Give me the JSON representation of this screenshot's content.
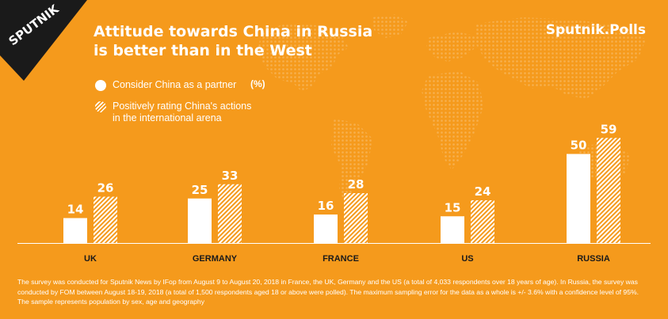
{
  "logo": {
    "text": "SPUTNIK"
  },
  "title": {
    "line1": "Attitude towards China in Russia",
    "line2": "is better than in the West"
  },
  "brand": "Sputnik.Polls",
  "unit": "(%)",
  "colors": {
    "background": "#f59a1c",
    "foreground": "#ffffff",
    "map_dots": "#f7b04e"
  },
  "legend": [
    {
      "name": "Consider China as a partner",
      "style": "solid"
    },
    {
      "name": "Positively rating China's actions\nin the international arena",
      "style": "hatched"
    }
  ],
  "chart_data": {
    "type": "bar",
    "categories": [
      "UK",
      "GERMANY",
      "FRANCE",
      "US",
      "RUSSIA"
    ],
    "series": [
      {
        "name": "Consider China as a partner",
        "values": [
          14,
          25,
          16,
          15,
          50
        ]
      },
      {
        "name": "Positively rating China's actions in the international arena",
        "values": [
          26,
          33,
          28,
          24,
          59
        ]
      }
    ],
    "ylim": [
      0,
      60
    ],
    "legend_position": "top-left",
    "grid": false,
    "data_labels": true
  },
  "footnote": "The survey was conducted for Sputnik News by IFop from August 9 to August 20, 2018 in France, the UK, Germany and the US (a total of 4,033 respondents over 18 years of age). In Russia, the survey was conducted by FOM between August 18-19, 2018 (a total of 1,500 respondents aged 18 or above were polled). The maximum sampling error for the data as a whole is +/- 3.6% with a confidence level of 95%. The sample represents population by sex, age and geography"
}
